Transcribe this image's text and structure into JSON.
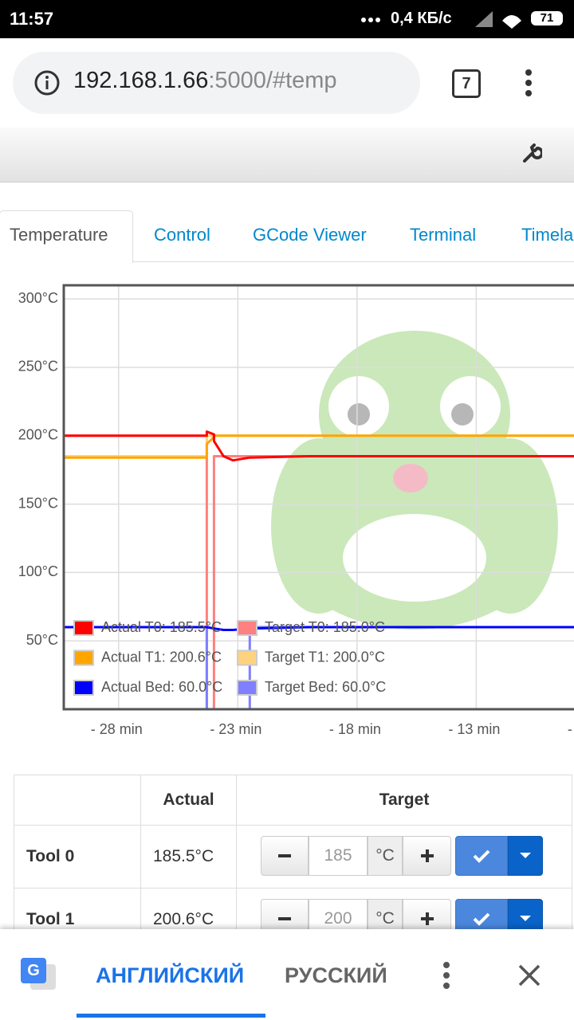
{
  "status_bar": {
    "time": "11:57",
    "speed": "0,4 КБ/с",
    "battery": "71"
  },
  "browser": {
    "url_host": "192.168.1.66",
    "url_rest": ":5000/#temp",
    "tab_count": "7"
  },
  "tabs": [
    "Temperature",
    "Control",
    "GCode Viewer",
    "Terminal",
    "Timela"
  ],
  "chart_data": {
    "type": "line",
    "x": [
      -30.3,
      -24.3,
      -24.3,
      -24.0,
      -24.0,
      -23.6,
      -23.2,
      -22.5,
      -22.5,
      -20,
      -8.9
    ],
    "series": [
      {
        "name": "Actual T0: 185.5°C",
        "color": "#ff0000",
        "values": [
          200,
          200,
          203,
          201,
          196,
          185,
          182,
          184,
          184,
          185,
          185
        ]
      },
      {
        "name": "Target T0: 185.0°C",
        "color": "#ff8080",
        "values": [
          200,
          200,
          0,
          0,
          185,
          185,
          185,
          185,
          185,
          185,
          185
        ]
      },
      {
        "name": "Actual T1: 200.6°C",
        "color": "#ffa500",
        "values": [
          184,
          184,
          194,
          199,
          200,
          200,
          200,
          200,
          200,
          200,
          200
        ]
      },
      {
        "name": "Target T1: 200.0°C",
        "color": "#ffd27f",
        "values": [
          185,
          185,
          200,
          200,
          200,
          200,
          200,
          200,
          200,
          200,
          200
        ]
      },
      {
        "name": "Actual Bed: 60.0°C",
        "color": "#0000ff",
        "values": [
          60,
          60,
          60,
          59,
          59,
          58,
          58,
          59,
          59,
          60,
          60
        ]
      },
      {
        "name": "Target Bed: 60.0°C",
        "color": "#7f7fff",
        "values": [
          60,
          60,
          0,
          0,
          0,
          0,
          0,
          0,
          60,
          60,
          60
        ]
      }
    ],
    "xlim": [
      -30.3,
      -8.9
    ],
    "ylim": [
      0,
      310
    ],
    "xticks": [
      {
        "value": -28,
        "label": "- 28 min"
      },
      {
        "value": -23,
        "label": "- 23 min"
      },
      {
        "value": -18,
        "label": "- 18 min"
      },
      {
        "value": -13,
        "label": "- 13 min"
      },
      {
        "value": -8,
        "label": "-"
      }
    ],
    "yticks": [
      {
        "value": 50,
        "label": "50°C"
      },
      {
        "value": 100,
        "label": "100°C"
      },
      {
        "value": 150,
        "label": "150°C"
      },
      {
        "value": 200,
        "label": "200°C"
      },
      {
        "value": 250,
        "label": "250°C"
      },
      {
        "value": 300,
        "label": "300°C"
      }
    ],
    "grid": true,
    "legend": "lower-left"
  },
  "table": {
    "headers": [
      "Actual",
      "Target"
    ],
    "rows": [
      {
        "name": "Tool 0",
        "actual": "185.5°C",
        "target": "185",
        "unit": "°C"
      },
      {
        "name": "Tool 1",
        "actual": "200.6°C",
        "target": "200",
        "unit": "°C"
      }
    ]
  },
  "translate_bar": {
    "source": "АНГЛИЙСКИЙ",
    "target": "РУССКИЙ"
  }
}
